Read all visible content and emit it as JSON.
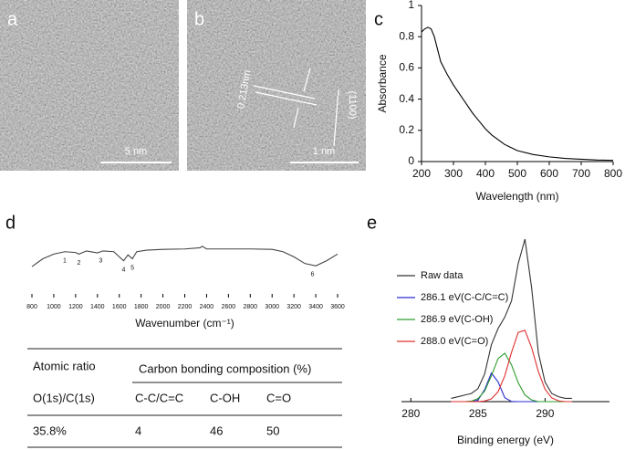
{
  "images": [
    {
      "label": "a",
      "scale_bar": "5 nm"
    },
    {
      "label": "b",
      "scale_bar": "1 nm",
      "lattice_spacing": "0.213nm",
      "plane": "(1100)"
    }
  ],
  "chart_data": [
    {
      "type": "line",
      "panel": "c",
      "x_label": "Wavelength (nm)",
      "y_label": "Absorbance",
      "x": [
        200,
        210,
        220,
        230,
        240,
        250,
        260,
        280,
        300,
        320,
        340,
        360,
        380,
        400,
        420,
        440,
        460,
        480,
        500,
        550,
        600,
        650,
        700,
        750,
        800
      ],
      "values": [
        0.83,
        0.85,
        0.86,
        0.85,
        0.8,
        0.72,
        0.64,
        0.56,
        0.49,
        0.43,
        0.37,
        0.31,
        0.26,
        0.21,
        0.17,
        0.14,
        0.11,
        0.09,
        0.07,
        0.045,
        0.03,
        0.02,
        0.015,
        0.01,
        0.008
      ],
      "color": "#000000",
      "xlim": [
        200,
        800
      ],
      "xticks": [
        200,
        300,
        400,
        500,
        600,
        700,
        800
      ],
      "ylim": [
        0,
        1
      ],
      "yticks": [
        0,
        0.2,
        0.4,
        0.6,
        0.8,
        1
      ]
    },
    {
      "type": "line",
      "panel": "d",
      "x_label": "Wavenumber (cm⁻¹)",
      "x": [
        800,
        900,
        1000,
        1100,
        1200,
        1230,
        1300,
        1400,
        1450,
        1550,
        1600,
        1640,
        1680,
        1720,
        1760,
        1850,
        2000,
        2200,
        2340,
        2360,
        2400,
        2600,
        2800,
        3000,
        3100,
        3200,
        3300,
        3400,
        3500,
        3600
      ],
      "values": [
        30,
        50,
        62,
        68,
        66,
        62,
        70,
        65,
        70,
        68,
        55,
        45,
        60,
        50,
        68,
        72,
        74,
        75,
        78,
        82,
        75,
        75,
        75,
        74,
        68,
        55,
        38,
        32,
        45,
        62
      ],
      "color": "#444444",
      "xlim": [
        800,
        3600
      ],
      "xticks": [
        800,
        1000,
        1200,
        1400,
        1600,
        1800,
        2000,
        2200,
        2400,
        2600,
        2800,
        3000,
        3200,
        3400,
        3600
      ],
      "ylim": [
        0,
        100
      ],
      "annotations": [
        {
          "text": "1",
          "x": 1100
        },
        {
          "text": "2",
          "x": 1230
        },
        {
          "text": "3",
          "x": 1430
        },
        {
          "text": "4",
          "x": 1640
        },
        {
          "text": "5",
          "x": 1720
        },
        {
          "text": "6",
          "x": 3370
        }
      ]
    },
    {
      "type": "line",
      "panel": "e",
      "x_label": "Binding energy (eV)",
      "x": [
        283,
        283.5,
        284,
        284.5,
        285,
        285.5,
        286,
        286.5,
        287,
        287.5,
        288,
        288.5,
        289,
        289.5,
        290,
        290.5,
        291,
        291.5,
        292
      ],
      "series": [
        {
          "name": "Raw data",
          "color": "#333333",
          "values": [
            2,
            3,
            4,
            5,
            8,
            17,
            35,
            45,
            52,
            62,
            85,
            100,
            70,
            30,
            12,
            5,
            3,
            2,
            2
          ]
        },
        {
          "name": "286.1 eV(C-C/C=C)",
          "color": "#2b2bd0",
          "values": [
            0,
            0,
            0,
            0,
            0.9,
            7.4,
            17.6,
            12.1,
            2.4,
            0.1,
            0,
            0,
            0,
            0,
            0,
            0,
            0,
            0,
            0
          ]
        },
        {
          "name": "286.9 eV(C-OH)",
          "color": "#2e9e2e",
          "values": [
            0,
            0,
            0,
            0.3,
            1.8,
            6.5,
            15.9,
            26.5,
            29.8,
            22.6,
            11.6,
            4.1,
            1,
            0,
            0,
            0,
            0,
            0,
            0
          ]
        },
        {
          "name": "288.0 eV(C=O)",
          "color": "#e03030",
          "values": [
            0,
            0,
            0,
            0,
            0,
            0.4,
            1.7,
            6.1,
            15.9,
            30.3,
            42.6,
            43.9,
            33.2,
            18.5,
            7.6,
            2.3,
            0.5,
            0,
            0
          ]
        }
      ],
      "xlim": [
        279.3,
        294.8
      ],
      "xticks": [
        280,
        285,
        290
      ],
      "ylim": [
        0,
        100
      ],
      "legend": "upper left"
    }
  ],
  "table": {
    "header": [
      "Atomic ratio",
      "Carbon bonding composition (%)"
    ],
    "rows": [
      [
        "O(1s)/C(1s)",
        "C-C/C=C",
        "C-OH",
        "C=O"
      ],
      [
        "35.8%",
        "4",
        "46",
        "50"
      ]
    ]
  }
}
